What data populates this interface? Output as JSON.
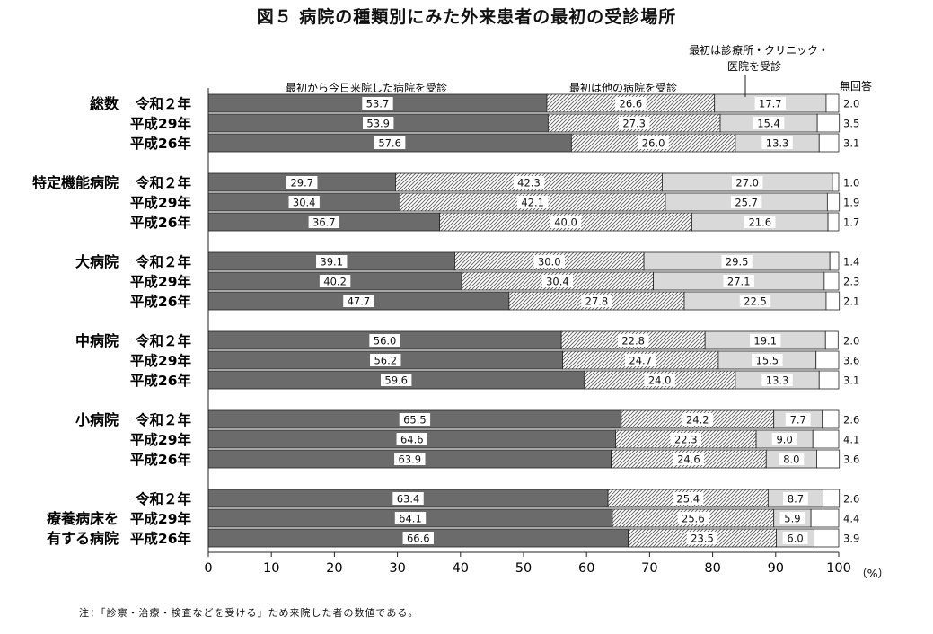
{
  "title": "図５ 病院の種類別にみた外来患者の最初の受診場所",
  "note": "注：「診察・治療・検査などを受ける」ため来院した者の数値である。",
  "chart_data": {
    "type": "bar",
    "orientation": "horizontal",
    "stacked": true,
    "unit_label": "（%）",
    "xlim": [
      0,
      100
    ],
    "ticks": [
      "0",
      "10",
      "20",
      "30",
      "40",
      "50",
      "60",
      "70",
      "80",
      "90",
      "100"
    ],
    "series_labels": [
      "最初から今日来院した病院を受診",
      "最初は他の病院を受診",
      "最初は診療所・クリニック・",
      "医院を受診",
      "無回答"
    ],
    "series": [
      {
        "name": "最初から今日来院した病院を受診",
        "color": "#6b6b6b",
        "pattern": "solid"
      },
      {
        "name": "最初は他の病院を受診",
        "color": "#ffffff",
        "pattern": "hatch"
      },
      {
        "name": "最初は診療所・クリニック・医院を受診",
        "color": "#d9d9d9",
        "pattern": "solid"
      },
      {
        "name": "無回答",
        "color": "#ffffff",
        "pattern": "none"
      }
    ],
    "groups": [
      {
        "label": [
          "総数"
        ],
        "rows": [
          {
            "year": "令和２年",
            "values": [
              53.7,
              26.6,
              17.7,
              2.0
            ]
          },
          {
            "year": "平成29年",
            "values": [
              53.9,
              27.3,
              15.4,
              3.5
            ]
          },
          {
            "year": "平成26年",
            "values": [
              57.6,
              26.0,
              13.3,
              3.1
            ]
          }
        ]
      },
      {
        "label": [
          "特定機能病院"
        ],
        "rows": [
          {
            "year": "令和２年",
            "values": [
              29.7,
              42.3,
              27.0,
              1.0
            ]
          },
          {
            "year": "平成29年",
            "values": [
              30.4,
              42.1,
              25.7,
              1.9
            ]
          },
          {
            "year": "平成26年",
            "values": [
              36.7,
              40.0,
              21.6,
              1.7
            ]
          }
        ]
      },
      {
        "label": [
          "大病院"
        ],
        "rows": [
          {
            "year": "令和２年",
            "values": [
              39.1,
              30.0,
              29.5,
              1.4
            ]
          },
          {
            "year": "平成29年",
            "values": [
              40.2,
              30.4,
              27.1,
              2.3
            ]
          },
          {
            "year": "平成26年",
            "values": [
              47.7,
              27.8,
              22.5,
              2.1
            ]
          }
        ]
      },
      {
        "label": [
          "中病院"
        ],
        "rows": [
          {
            "year": "令和２年",
            "values": [
              56.0,
              22.8,
              19.1,
              2.0
            ]
          },
          {
            "year": "平成29年",
            "values": [
              56.2,
              24.7,
              15.5,
              3.6
            ]
          },
          {
            "year": "平成26年",
            "values": [
              59.6,
              24.0,
              13.3,
              3.1
            ]
          }
        ]
      },
      {
        "label": [
          "小病院"
        ],
        "rows": [
          {
            "year": "令和２年",
            "values": [
              65.5,
              24.2,
              7.7,
              2.6
            ]
          },
          {
            "year": "平成29年",
            "values": [
              64.6,
              22.3,
              9.0,
              4.1
            ]
          },
          {
            "year": "平成26年",
            "values": [
              63.9,
              24.6,
              8.0,
              3.6
            ]
          }
        ]
      },
      {
        "label": [
          "療養病床を",
          "有する病院"
        ],
        "rows": [
          {
            "year": "令和２年",
            "values": [
              63.4,
              25.4,
              8.7,
              2.6
            ]
          },
          {
            "year": "平成29年",
            "values": [
              64.1,
              25.6,
              5.9,
              4.4
            ]
          },
          {
            "year": "平成26年",
            "values": [
              66.6,
              23.5,
              6.0,
              3.9
            ]
          }
        ]
      }
    ]
  }
}
